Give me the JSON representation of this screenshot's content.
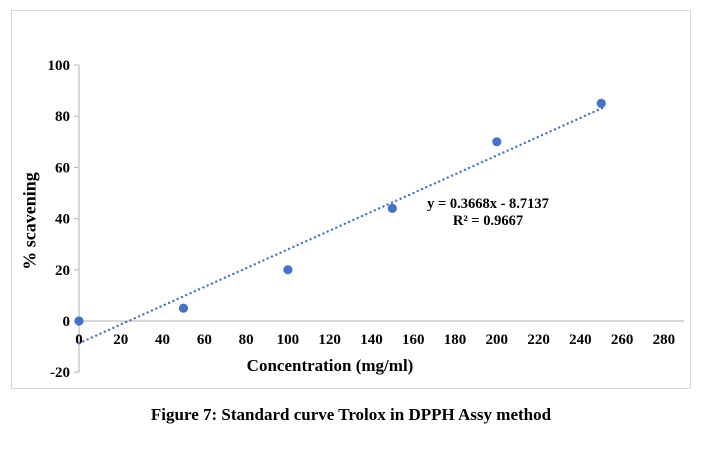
{
  "figure": {
    "caption": "Figure 7: Standard curve Trolox in DPPH Assy method"
  },
  "chart_data": {
    "type": "scatter",
    "title": "",
    "xlabel": "Concentration (mg/ml)",
    "ylabel": "% scavening",
    "xlim": [
      0,
      280
    ],
    "ylim": [
      -20,
      100
    ],
    "x_ticks": [
      0,
      20,
      40,
      60,
      80,
      100,
      120,
      140,
      160,
      180,
      200,
      220,
      240,
      260,
      280
    ],
    "y_ticks": [
      -20,
      0,
      20,
      40,
      60,
      80,
      100
    ],
    "grid": false,
    "legend": "none",
    "points": [
      {
        "x": 0,
        "y": 0
      },
      {
        "x": 50,
        "y": 5
      },
      {
        "x": 100,
        "y": 20
      },
      {
        "x": 150,
        "y": 44
      },
      {
        "x": 200,
        "y": 70
      },
      {
        "x": 250,
        "y": 85
      }
    ],
    "trendline": {
      "slope": 0.3668,
      "intercept": -8.7137,
      "x_start": 0,
      "x_end": 252,
      "style": "dotted",
      "equation_label": "y = 0.3668x - 8.7137",
      "r_squared_label": "R² = 0.9667"
    },
    "colors": {
      "marker": "#4472C4",
      "trendline": "#4472C4",
      "axis": "#BFBFBF",
      "text": "#000000",
      "border": "#D8D8D8"
    }
  }
}
